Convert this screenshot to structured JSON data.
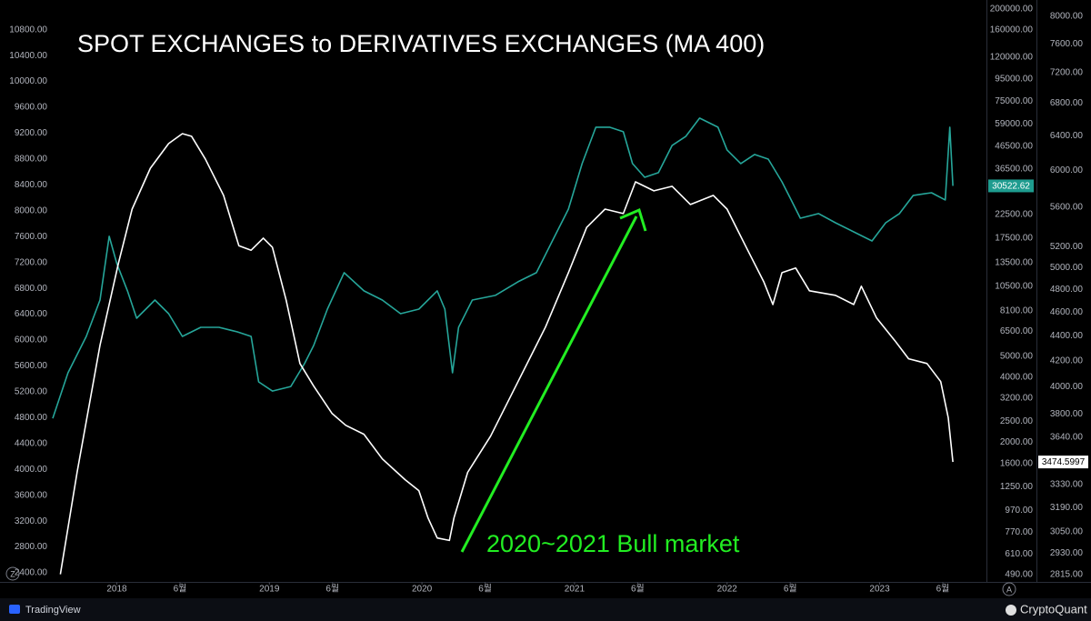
{
  "chart_data": {
    "type": "line",
    "title": "SPOT EXCHANGES to DERIVATIVES EXCHANGES (MA 400)",
    "annotation": "2020~2021 Bull market",
    "footer": {
      "left_brand": "TradingView",
      "right_brand": "CryptoQuant",
      "left_button": "Z",
      "right_button": "A"
    },
    "grid": false,
    "xlim": [
      2017.58,
      2023.7
    ],
    "xticks": [
      2018,
      {
        "value": 2018.414,
        "label": "6월"
      },
      2019,
      {
        "value": 2019.414,
        "label": "6월"
      },
      2020,
      {
        "value": 2020.414,
        "label": "6월"
      },
      2021,
      {
        "value": 2021.414,
        "label": "6월"
      },
      2022,
      {
        "value": 2022.414,
        "label": "6월"
      },
      2023,
      {
        "value": 2023.414,
        "label": "6월"
      }
    ],
    "ylim": [
      2260,
      11260
    ],
    "yticks": [
      {
        "value": 10800,
        "label": "10800.00"
      },
      {
        "value": 10400,
        "label": "10400.00"
      },
      {
        "value": 10000,
        "label": "10000.00"
      },
      {
        "value": 9600,
        "label": "9600.00"
      },
      {
        "value": 9200,
        "label": "9200.00"
      },
      {
        "value": 8800,
        "label": "8800.00"
      },
      {
        "value": 8400,
        "label": "8400.00"
      },
      {
        "value": 8000,
        "label": "8000.00"
      },
      {
        "value": 7600,
        "label": "7600.00"
      },
      {
        "value": 7200,
        "label": "7200.00"
      },
      {
        "value": 6800,
        "label": "6800.00"
      },
      {
        "value": 6400,
        "label": "6400.00"
      },
      {
        "value": 6000,
        "label": "6000.00"
      },
      {
        "value": 5600,
        "label": "5600.00"
      },
      {
        "value": 5200,
        "label": "5200.00"
      },
      {
        "value": 4800,
        "label": "4800.00"
      },
      {
        "value": 4400,
        "label": "4400.00"
      },
      {
        "value": 4000,
        "label": "4000.00"
      },
      {
        "value": 3600,
        "label": "3600.00"
      },
      {
        "value": 3200,
        "label": "3200.00"
      },
      {
        "value": 2800,
        "label": "2800.00"
      },
      {
        "value": 2400,
        "label": "2400.00"
      }
    ],
    "y2lim": [
      454,
      220000
    ],
    "y2log": true,
    "y2ticks": [
      {
        "value": 200000,
        "label": "200000.00"
      },
      {
        "value": 160000,
        "label": "160000.00"
      },
      {
        "value": 120000,
        "label": "120000.00"
      },
      {
        "value": 95000,
        "label": "95000.00"
      },
      {
        "value": 75000,
        "label": "75000.00"
      },
      {
        "value": 59000,
        "label": "59000.00"
      },
      {
        "value": 46500,
        "label": "46500.00"
      },
      {
        "value": 36500,
        "label": "36500.00"
      },
      {
        "value": 22500,
        "label": "22500.00"
      },
      {
        "value": 17500,
        "label": "17500.00"
      },
      {
        "value": 13500,
        "label": "13500.00"
      },
      {
        "value": 10500,
        "label": "10500.00"
      },
      {
        "value": 8100,
        "label": "8100.00"
      },
      {
        "value": 6500,
        "label": "6500.00"
      },
      {
        "value": 5000,
        "label": "5000.00"
      },
      {
        "value": 4000,
        "label": "4000.00"
      },
      {
        "value": 3200,
        "label": "3200.00"
      },
      {
        "value": 2500,
        "label": "2500.00"
      },
      {
        "value": 2000,
        "label": "2000.00"
      },
      {
        "value": 1600,
        "label": "1600.00"
      },
      {
        "value": 1250,
        "label": "1250.00"
      },
      {
        "value": 970,
        "label": "970.00"
      },
      {
        "value": 770,
        "label": "770.00"
      },
      {
        "value": 610,
        "label": "610.00"
      },
      {
        "value": 490,
        "label": "490.00"
      }
    ],
    "y3lim": [
      2776,
      8250
    ],
    "y3log": true,
    "y3ticks": [
      {
        "value": 8000,
        "label": "8000.00"
      },
      {
        "value": 7600,
        "label": "7600.00"
      },
      {
        "value": 7200,
        "label": "7200.00"
      },
      {
        "value": 6800,
        "label": "6800.00"
      },
      {
        "value": 6400,
        "label": "6400.00"
      },
      {
        "value": 6000,
        "label": "6000.00"
      },
      {
        "value": 5600,
        "label": "5600.00"
      },
      {
        "value": 5200,
        "label": "5200.00"
      },
      {
        "value": 5000,
        "label": "5000.00"
      },
      {
        "value": 4800,
        "label": "4800.00"
      },
      {
        "value": 4600,
        "label": "4600.00"
      },
      {
        "value": 4400,
        "label": "4400.00"
      },
      {
        "value": 4200,
        "label": "4200.00"
      },
      {
        "value": 4000,
        "label": "4000.00"
      },
      {
        "value": 3800,
        "label": "3800.00"
      },
      {
        "value": 3640,
        "label": "3640.00"
      },
      {
        "value": 3330,
        "label": "3330.00"
      },
      {
        "value": 3190,
        "label": "3190.00"
      },
      {
        "value": 3050,
        "label": "3050.00"
      },
      {
        "value": 2930,
        "label": "2930.00"
      },
      {
        "value": 2815,
        "label": "2815.00"
      }
    ],
    "series": [
      {
        "axis": "y2",
        "color": "#26a69a",
        "badge_color": "#1e9c8f",
        "x": [
          2017.58,
          2017.68,
          2017.8,
          2017.89,
          2017.95,
          2018.0,
          2018.07,
          2018.13,
          2018.25,
          2018.34,
          2018.43,
          2018.55,
          2018.67,
          2018.79,
          2018.88,
          2018.93,
          2019.02,
          2019.14,
          2019.23,
          2019.29,
          2019.38,
          2019.49,
          2019.62,
          2019.74,
          2019.86,
          2019.98,
          2020.1,
          2020.15,
          2020.2,
          2020.24,
          2020.33,
          2020.48,
          2020.63,
          2020.75,
          2020.87,
          2020.96,
          2021.05,
          2021.14,
          2021.23,
          2021.32,
          2021.38,
          2021.46,
          2021.55,
          2021.64,
          2021.73,
          2021.82,
          2021.94,
          2022.0,
          2022.09,
          2022.18,
          2022.27,
          2022.36,
          2022.42,
          2022.48,
          2022.6,
          2022.71,
          2022.83,
          2022.95,
          2023.04,
          2023.13,
          2023.22,
          2023.34,
          2023.43,
          2023.46,
          2023.48
        ],
        "values": [
          2582,
          4188,
          6166,
          9078,
          17860,
          13365,
          10000,
          7482,
          9078,
          7850,
          6166,
          6790,
          6790,
          6471,
          6166,
          3802,
          3451,
          3622,
          4613,
          5598,
          8241,
          12134,
          10000,
          9078,
          7850,
          8241,
          10000,
          8241,
          4188,
          6790,
          9078,
          9528,
          11015,
          12134,
          17860,
          23850,
          38680,
          56920,
          56920,
          54240,
          38680,
          33450,
          35110,
          46930,
          51680,
          62690,
          56920,
          44720,
          38680,
          42600,
          40580,
          31870,
          26280,
          21650,
          22730,
          20630,
          18730,
          17010,
          20630,
          22730,
          27580,
          28380,
          26280,
          56920,
          30522.62
        ]
      },
      {
        "axis": "y3",
        "color": "#ffffff",
        "badge_color": "#ffffff",
        "x": [
          2017.63,
          2017.74,
          2017.89,
          2018.01,
          2018.1,
          2018.22,
          2018.34,
          2018.43,
          2018.49,
          2018.58,
          2018.7,
          2018.8,
          2018.88,
          2018.96,
          2019.02,
          2019.11,
          2019.2,
          2019.29,
          2019.41,
          2019.5,
          2019.62,
          2019.74,
          2019.89,
          2019.98,
          2020.04,
          2020.1,
          2020.18,
          2020.21,
          2020.3,
          2020.45,
          2020.63,
          2020.81,
          2020.96,
          2021.08,
          2021.2,
          2021.32,
          2021.4,
          2021.52,
          2021.64,
          2021.76,
          2021.91,
          2022.0,
          2022.12,
          2022.24,
          2022.3,
          2022.36,
          2022.45,
          2022.54,
          2022.71,
          2022.83,
          2022.88,
          2022.98,
          2023.1,
          2023.19,
          2023.31,
          2023.4,
          2023.45,
          2023.48
        ],
        "values": [
          2816,
          3408,
          4323,
          5038,
          5578,
          6022,
          6306,
          6424,
          6392,
          6127,
          5723,
          5209,
          5165,
          5283,
          5194,
          4706,
          4178,
          4005,
          3806,
          3722,
          3660,
          3495,
          3361,
          3293,
          3129,
          3014,
          3000,
          3129,
          3408,
          3647,
          4039,
          4473,
          4952,
          5390,
          5578,
          5531,
          5870,
          5772,
          5821,
          5626,
          5723,
          5578,
          5209,
          4870,
          4666,
          4952,
          4995,
          4787,
          4747,
          4666,
          4828,
          4549,
          4360,
          4215,
          4178,
          4039,
          3774,
          3474.5997
        ]
      }
    ]
  }
}
